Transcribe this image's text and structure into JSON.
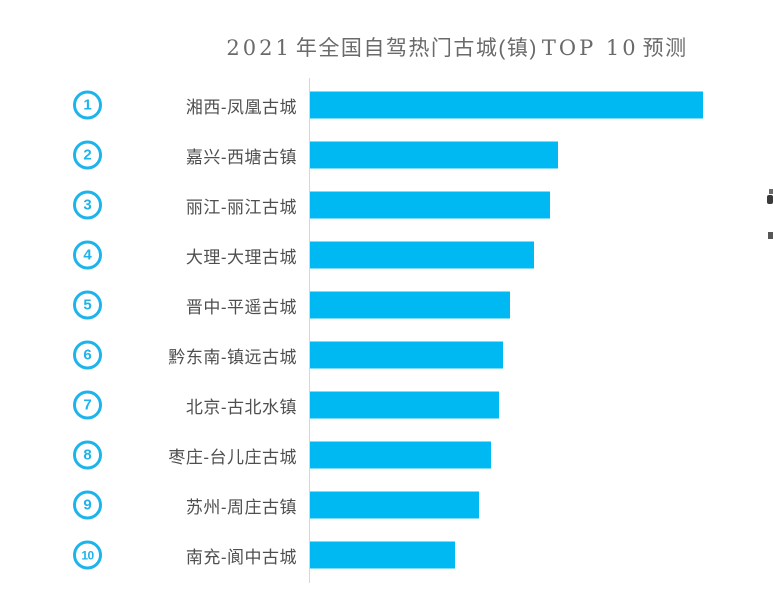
{
  "title": {
    "full": "2021年全国自驾热门古城(镇) TOP 10 预测",
    "part_year": "2021",
    "part_cn1": "年全国自驾热门古城(镇)",
    "part_top": "TOP 10",
    "part_cn2": "预测"
  },
  "colors": {
    "bar": "#00b9f2",
    "badge": "#1db4ec",
    "label": "#4f4f4f",
    "title": "#6a6a6a",
    "axis": "#d6d6d6",
    "artifact": "#3a3a3a"
  },
  "chart_data": {
    "type": "bar",
    "orientation": "horizontal",
    "title": "2021年全国自驾热门古城(镇) TOP 10 预测",
    "categories": [
      "湘西-凤凰古城",
      "嘉兴-西塘古镇",
      "丽江-丽江古城",
      "大理-大理古城",
      "晋中-平遥古城",
      "黔东南-镇远古城",
      "北京-古北水镇",
      "枣庄-台儿庄古城",
      "苏州-周庄古镇",
      "南充-阆中古城"
    ],
    "ranks": [
      "1",
      "2",
      "3",
      "4",
      "5",
      "6",
      "7",
      "8",
      "9",
      "10"
    ],
    "values": [
      100,
      63,
      61,
      57,
      51,
      49,
      48,
      46,
      43,
      37
    ],
    "value_note": "estimated relative heat index (no numeric data labels are shown in the chart)",
    "xlim": [
      0,
      100
    ],
    "xlabel": "",
    "ylabel": "",
    "grid": false,
    "legend": false
  }
}
